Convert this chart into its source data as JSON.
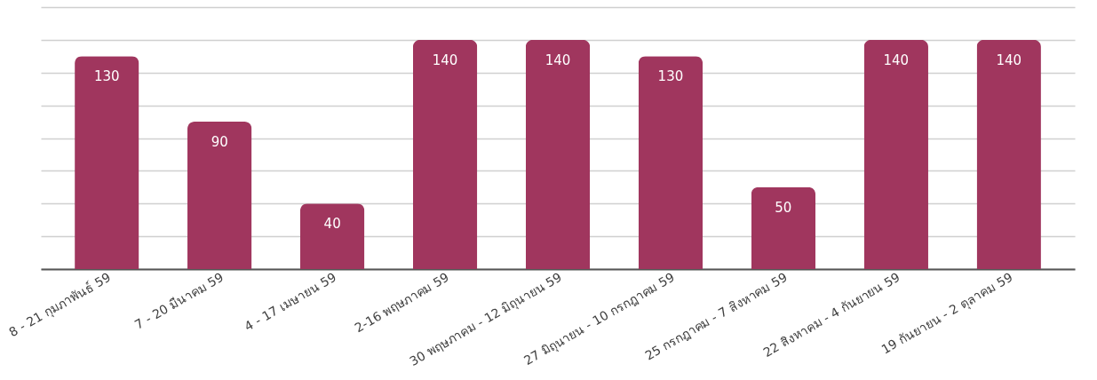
{
  "chart_data": {
    "type": "bar",
    "categories": [
      "8 - 21 กุมภาพันธ์ 59",
      "7 - 20 มีนาคม 59",
      "4 - 17 เมษายน 59",
      "2-16 พฤษภาคม 59",
      "30 พฤษภาคม - 12 มิถุนายน 59",
      "27 มิถุนายน - 10 กรกฎาคม 59",
      "25 กรกฎาคม  - 7 สิงหาคม 59",
      "22 สิงหาคม - 4 กันยายน 59",
      "19 กันยายน  - 2 ตุลาคม 59"
    ],
    "values": [
      130,
      90,
      40,
      140,
      140,
      130,
      50,
      140,
      140
    ],
    "color": "#a0365e",
    "ylim": [
      0,
      160
    ],
    "yticks": [
      {
        "value": 0,
        "label": null
      },
      {
        "value": 20,
        "label": null
      },
      {
        "value": 40,
        "label": null
      },
      {
        "value": 60,
        "label": null
      },
      {
        "value": 80,
        "label": null
      },
      {
        "value": 100,
        "label": null
      },
      {
        "value": 120,
        "label": null
      },
      {
        "value": 140,
        "label": null
      },
      {
        "value": 160,
        "label": null
      }
    ],
    "grid": "y",
    "tick_labels": "x",
    "data_labels": true
  }
}
